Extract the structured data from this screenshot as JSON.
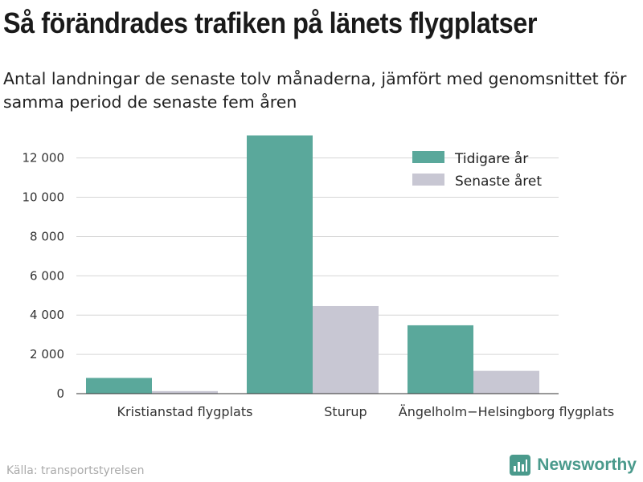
{
  "header": {
    "title": "Så förändrades trafiken på länets flygplatser",
    "subtitle": "Antal landningar de senaste tolv månaderna, jämfört med genomsnittet för samma period de senaste fem åren"
  },
  "footer": {
    "source": "Källa: transportstyrelsen",
    "brand": "Newsworthy",
    "brand_icon": "bar-chart-logo-icon"
  },
  "colors": {
    "previous": "#5aa89b",
    "latest": "#c8c7d3",
    "grid": "#d6d6d6",
    "brand": "#4a9a8c"
  },
  "chart_data": {
    "type": "bar",
    "categories": [
      "Kristianstad flygplats",
      "Sturup",
      "Ängelholm−Helsingborg flygplats"
    ],
    "series": [
      {
        "name": "Tidigare år",
        "values": [
          800,
          13150,
          3480
        ]
      },
      {
        "name": "Senaste året",
        "values": [
          130,
          4460,
          1160
        ]
      }
    ],
    "yticks": [
      0,
      2000,
      4000,
      6000,
      8000,
      10000,
      12000
    ],
    "ytick_labels": [
      "0",
      "2 000",
      "4 000",
      "6 000",
      "8 000",
      "10 000",
      "12 000"
    ],
    "ylim": [
      0,
      13500
    ],
    "grid": true,
    "legend_position": "top-right"
  }
}
